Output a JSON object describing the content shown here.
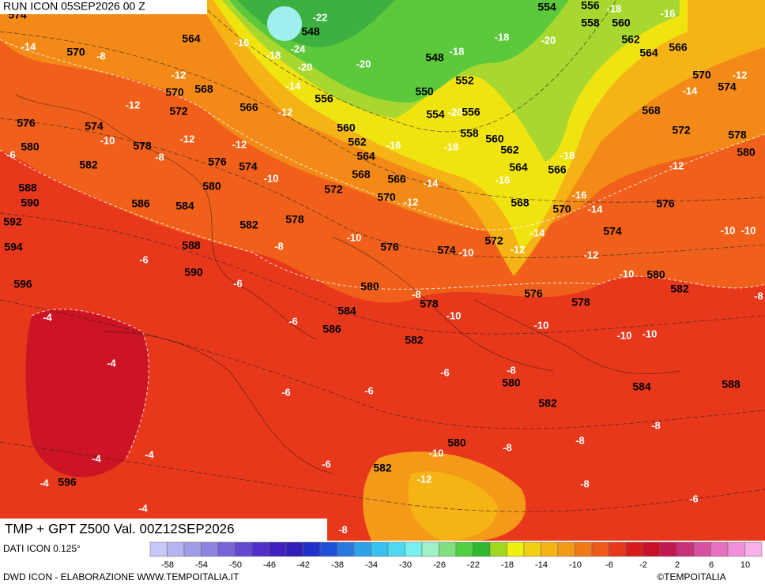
{
  "header": {
    "run": "RUN ICON 05SEP2026 00 Z"
  },
  "map": {
    "geopotential_labels": [
      "574",
      "564",
      "570",
      "548",
      "548",
      "552",
      "550",
      "554",
      "556",
      "558",
      "560",
      "562",
      "564",
      "566",
      "568",
      "570",
      "556",
      "560",
      "562",
      "564",
      "568",
      "566",
      "570",
      "572",
      "568",
      "570",
      "572",
      "566",
      "576",
      "574",
      "578",
      "580",
      "582",
      "576",
      "574",
      "580",
      "586",
      "584",
      "582",
      "578",
      "588",
      "590",
      "592",
      "594",
      "588",
      "590",
      "596",
      "576",
      "574",
      "572",
      "580",
      "578",
      "584",
      "586",
      "582",
      "580",
      "582",
      "576",
      "578",
      "580",
      "582",
      "584",
      "588",
      "576",
      "574",
      "572",
      "568",
      "570",
      "574",
      "578",
      "580",
      "560",
      "562",
      "564",
      "566",
      "558",
      "556",
      "554",
      "580",
      "582",
      "596"
    ],
    "temperature_labels": [
      "-22",
      "-18",
      "-24",
      "-20",
      "-14",
      "-12",
      "-16",
      "-20",
      "-18",
      "-18",
      "-20",
      "-16",
      "-18",
      "-20",
      "-18",
      "-16",
      "-18",
      "-16",
      "-16",
      "-14",
      "-14",
      "-14",
      "-12",
      "-12",
      "-12",
      "-12",
      "-10",
      "-10",
      "-10",
      "-10",
      "-10",
      "-10",
      "-10",
      "-10",
      "-10",
      "-10",
      "-12",
      "-8",
      "-8",
      "-8",
      "-8",
      "-8",
      "-8",
      "-8",
      "-8",
      "-8",
      "-6",
      "-6",
      "-6",
      "-6",
      "-6",
      "-6",
      "-6",
      "-6",
      "-8",
      "-10",
      "-12",
      "-12",
      "-12",
      "-12",
      "-14",
      "-8",
      "-4",
      "-4",
      "-4",
      "-4",
      "-4",
      "-4",
      "-6",
      "-12",
      "-14",
      "-10"
    ]
  },
  "footer": {
    "product": "TMP + GPT Z500 Val. 00Z12SEP2026",
    "source": "DATI ICON 0.125°",
    "scale_labels": [
      "-58",
      "-54",
      "-50",
      "-46",
      "-42",
      "-38",
      "-34",
      "-30",
      "-26",
      "-22",
      "-18",
      "-14",
      "-10",
      "-6",
      "-2",
      "2",
      "6",
      "10"
    ],
    "credit": "DWD ICON - ELABORAZIONE WWW.TEMPOITALIA.IT",
    "copyright": "©TEMPOITALIA"
  }
}
